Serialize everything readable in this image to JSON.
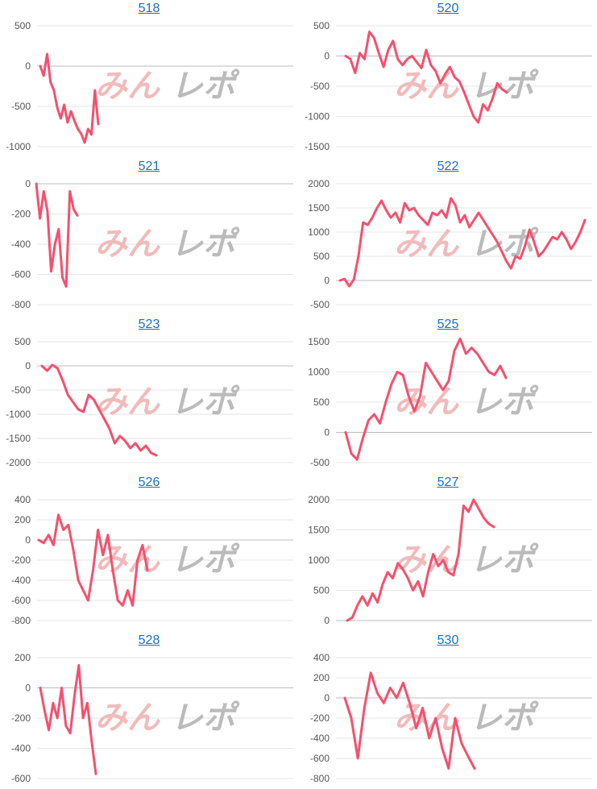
{
  "colors": {
    "line": "#f5506e",
    "grid": "#e6e6e6",
    "axis": "#bdbdbd",
    "title": "#1a6fc4",
    "tick": "#555555"
  },
  "watermark": {
    "text": "みんレポ",
    "colors": [
      "#f0b4b4",
      "#b4b4b4"
    ]
  },
  "chart_data": [
    {
      "type": "line",
      "title": "518",
      "grid": true,
      "ylim": [
        -1000,
        500
      ],
      "yticks": [
        500,
        0,
        -500,
        -1000
      ],
      "yticklabels": [
        "500",
        "0",
        "-500",
        "-1000"
      ],
      "series": [
        {
          "values": [
            0,
            -120,
            150,
            -200,
            -300,
            -520,
            -650,
            -480,
            -700,
            -560,
            -680,
            -780,
            -840,
            -950,
            -780,
            -850,
            -300,
            -720
          ]
        }
      ]
    },
    {
      "type": "line",
      "title": "520",
      "grid": true,
      "ylim": [
        -1500,
        500
      ],
      "yticks": [
        500,
        0,
        -500,
        -1000,
        -1500
      ],
      "yticklabels": [
        "500",
        "0",
        "-500",
        "-1000",
        "-1500"
      ],
      "series": [
        {
          "values": [
            0,
            -50,
            -280,
            50,
            -50,
            400,
            300,
            50,
            -180,
            100,
            250,
            -50,
            -150,
            -50,
            0,
            -100,
            -200,
            100,
            -150,
            -250,
            -450,
            -300,
            -180,
            -350,
            -420,
            -600,
            -800,
            -1000,
            -1100,
            -800,
            -900,
            -700,
            -450,
            -550,
            -600
          ]
        }
      ]
    },
    {
      "type": "line",
      "title": "521",
      "grid": true,
      "ylim": [
        -800,
        0
      ],
      "yticks": [
        0,
        -200,
        -400,
        -600,
        -800
      ],
      "yticklabels": [
        "0",
        "-200",
        "-400",
        "-600",
        "-800"
      ],
      "series": [
        {
          "values": [
            0,
            -230,
            -50,
            -180,
            -580,
            -400,
            -300,
            -620,
            -680,
            -50,
            -170,
            -210
          ]
        }
      ]
    },
    {
      "type": "line",
      "title": "522",
      "grid": true,
      "ylim": [
        -500,
        2000
      ],
      "yticks": [
        2000,
        1500,
        1000,
        500,
        0,
        -500
      ],
      "yticklabels": [
        "2000",
        "1500",
        "1000",
        "500",
        "0",
        "-500"
      ],
      "series": [
        {
          "values": [
            0,
            30,
            -120,
            20,
            500,
            1200,
            1150,
            1300,
            1500,
            1650,
            1450,
            1300,
            1400,
            1200,
            1600,
            1450,
            1500,
            1350,
            1250,
            1150,
            1400,
            1350,
            1450,
            1300,
            1700,
            1550,
            1200,
            1350,
            1100,
            1250,
            1400,
            1250,
            1100,
            950,
            800,
            600,
            400,
            250,
            500,
            450,
            700,
            1050,
            800,
            500,
            600,
            750,
            900,
            850,
            1000,
            850,
            650,
            800,
            1000,
            1250
          ]
        }
      ]
    },
    {
      "type": "line",
      "title": "523",
      "grid": true,
      "ylim": [
        -2000,
        500
      ],
      "yticks": [
        500,
        0,
        -500,
        -1000,
        -1500,
        -2000
      ],
      "yticklabels": [
        "500",
        "0",
        "-500",
        "-1000",
        "-1500",
        "-2000"
      ],
      "series": [
        {
          "values": [
            0,
            -100,
            20,
            -50,
            -300,
            -600,
            -750,
            -900,
            -950,
            -600,
            -700,
            -900,
            -1100,
            -1300,
            -1600,
            -1450,
            -1550,
            -1700,
            -1600,
            -1750,
            -1650,
            -1800,
            -1850
          ]
        }
      ]
    },
    {
      "type": "line",
      "title": "525",
      "grid": true,
      "ylim": [
        -500,
        1500
      ],
      "yticks": [
        1500,
        1000,
        500,
        0,
        -500
      ],
      "yticklabels": [
        "1500",
        "1000",
        "500",
        "0",
        "-500"
      ],
      "series": [
        {
          "values": [
            0,
            -350,
            -450,
            -100,
            200,
            300,
            150,
            500,
            800,
            1000,
            950,
            600,
            350,
            600,
            1150,
            1000,
            850,
            700,
            850,
            1350,
            1550,
            1300,
            1400,
            1300,
            1150,
            1000,
            950,
            1100,
            900
          ]
        }
      ]
    },
    {
      "type": "line",
      "title": "526",
      "grid": true,
      "ylim": [
        -800,
        400
      ],
      "yticks": [
        400,
        200,
        0,
        -200,
        -400,
        -600,
        -800
      ],
      "yticklabels": [
        "400",
        "200",
        "0",
        "-200",
        "-400",
        "-600",
        "-800"
      ],
      "series": [
        {
          "values": [
            0,
            -30,
            50,
            -50,
            250,
            100,
            150,
            -100,
            -400,
            -500,
            -600,
            -300,
            100,
            -150,
            50,
            -300,
            -600,
            -650,
            -500,
            -650,
            -200,
            -50,
            -300
          ]
        }
      ]
    },
    {
      "type": "line",
      "title": "527",
      "grid": true,
      "ylim": [
        0,
        2000
      ],
      "yticks": [
        2000,
        1500,
        1000,
        500,
        0
      ],
      "yticklabels": [
        "2000",
        "1500",
        "1000",
        "500",
        "0"
      ],
      "series": [
        {
          "values": [
            0,
            50,
            250,
            400,
            250,
            450,
            300,
            600,
            800,
            700,
            950,
            850,
            700,
            500,
            650,
            400,
            800,
            1100,
            900,
            1000,
            800,
            750,
            1100,
            1900,
            1800,
            2000,
            1850,
            1700,
            1600,
            1550
          ]
        }
      ]
    },
    {
      "type": "line",
      "title": "528",
      "grid": true,
      "ylim": [
        -600,
        200
      ],
      "yticks": [
        200,
        0,
        -200,
        -400,
        -600
      ],
      "yticklabels": [
        "200",
        "0",
        "-200",
        "-400",
        "-600"
      ],
      "series": [
        {
          "values": [
            0,
            -150,
            -280,
            -100,
            -200,
            0,
            -250,
            -300,
            -50,
            150,
            -200,
            -100,
            -350,
            -570
          ]
        }
      ]
    },
    {
      "type": "line",
      "title": "530",
      "grid": true,
      "ylim": [
        -800,
        400
      ],
      "yticks": [
        400,
        200,
        0,
        -200,
        -400,
        -600,
        -800
      ],
      "yticklabels": [
        "400",
        "200",
        "0",
        "-200",
        "-400",
        "-600",
        "-800"
      ],
      "series": [
        {
          "values": [
            0,
            -200,
            -600,
            -100,
            250,
            50,
            -50,
            100,
            0,
            150,
            -50,
            -300,
            -100,
            -400,
            -200,
            -500,
            -700,
            -200,
            -450,
            -580,
            -700
          ]
        }
      ]
    }
  ]
}
